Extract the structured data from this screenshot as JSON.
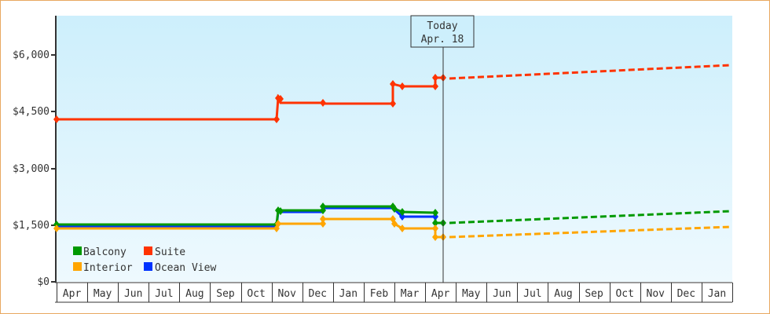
{
  "chart_data": {
    "type": "line",
    "title": "",
    "xlabel": "",
    "ylabel": "",
    "ylim": [
      0,
      7000
    ],
    "y_ticks": [
      "$0",
      "$1,500",
      "$3,000",
      "$4,500",
      "$6,000"
    ],
    "x_ticks": [
      "Apr",
      "May",
      "Jun",
      "Jul",
      "Aug",
      "Sep",
      "Oct",
      "Nov",
      "Dec",
      "Jan",
      "Feb",
      "Mar",
      "Apr",
      "May",
      "Jun",
      "Jul",
      "Aug",
      "Sep",
      "Oct",
      "Nov",
      "Dec",
      "Jan"
    ],
    "grid": false,
    "legend_position": "lower-left",
    "today_marker": {
      "line1": "Today",
      "line2": "Apr. 18"
    },
    "series": [
      {
        "name": "Suite",
        "color": "#ff3300",
        "history": [
          [
            "Apr",
            4330
          ],
          [
            "Oct-end",
            4330
          ],
          [
            "Nov",
            4880
          ],
          [
            "Nov",
            4750
          ],
          [
            "Dec",
            4750
          ],
          [
            "Dec",
            4700
          ],
          [
            "Feb",
            4700
          ],
          [
            "Feb",
            5200
          ],
          [
            "Mar",
            5150
          ],
          [
            "Apr",
            5150
          ],
          [
            "Apr",
            5400
          ],
          [
            "Apr 18",
            5400
          ]
        ],
        "forecast_end": 5790
      },
      {
        "name": "Balcony",
        "color": "#009900",
        "history": [
          [
            "Apr",
            1530
          ],
          [
            "Oct-end",
            1530
          ],
          [
            "Nov",
            1900
          ],
          [
            "Dec",
            1900
          ],
          [
            "Dec",
            2000
          ],
          [
            "Feb",
            2000
          ],
          [
            "Feb",
            1950
          ],
          [
            "Mar",
            1850
          ],
          [
            "Apr",
            1850
          ],
          [
            "Apr",
            1560
          ],
          [
            "Apr 18",
            1560
          ]
        ],
        "forecast_end": 1880
      },
      {
        "name": "Ocean View",
        "color": "#0033ff",
        "history": [
          [
            "Apr",
            1500
          ],
          [
            "Oct-end",
            1500
          ],
          [
            "Nov",
            1870
          ],
          [
            "Dec",
            1870
          ],
          [
            "Dec",
            1970
          ],
          [
            "Feb",
            1970
          ],
          [
            "Mar",
            1750
          ],
          [
            "Apr",
            1750
          ],
          [
            "Apr",
            1560
          ]
        ],
        "forecast_end": null
      },
      {
        "name": "Interior",
        "color": "#ffa500",
        "history": [
          [
            "Apr",
            1430
          ],
          [
            "Oct-end",
            1430
          ],
          [
            "Nov",
            1560
          ],
          [
            "Dec",
            1560
          ],
          [
            "Dec",
            1680
          ],
          [
            "Feb",
            1680
          ],
          [
            "Feb",
            1550
          ],
          [
            "Mar",
            1430
          ],
          [
            "Apr",
            1430
          ],
          [
            "Apr",
            1200
          ],
          [
            "Apr 18",
            1200
          ]
        ],
        "forecast_end": 1470
      }
    ]
  },
  "legend": [
    {
      "label": "Balcony",
      "color": "#009900"
    },
    {
      "label": "Suite",
      "color": "#ff3300"
    },
    {
      "label": "Interior",
      "color": "#ffa500"
    },
    {
      "label": "Ocean View",
      "color": "#0033ff"
    }
  ]
}
